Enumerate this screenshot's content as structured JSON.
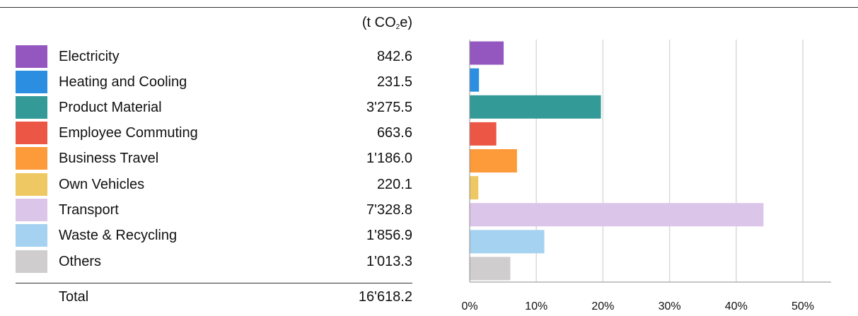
{
  "table": {
    "unit_prefix": "(t CO",
    "unit_sub": "2",
    "unit_suffix": "e)",
    "rows": [
      {
        "label": "Electricity",
        "value": "842.6",
        "color": "#9457c0"
      },
      {
        "label": "Heating and Cooling",
        "value": "231.5",
        "color": "#2b8ee0"
      },
      {
        "label": "Product Material",
        "value": "3'275.5",
        "color": "#339a98"
      },
      {
        "label": "Employee Commuting",
        "value": "663.6",
        "color": "#ec5644"
      },
      {
        "label": "Business Travel",
        "value": "1'186.0",
        "color": "#fd9a39"
      },
      {
        "label": "Own Vehicles",
        "value": "220.1",
        "color": "#eec862"
      },
      {
        "label": "Transport",
        "value": "7'328.8",
        "color": "#dbc5e9"
      },
      {
        "label": "Waste & Recycling",
        "value": "1'856.9",
        "color": "#a5d2f1"
      },
      {
        "label": "Others",
        "value": "1'013.3",
        "color": "#cfcdcd"
      }
    ],
    "total_label": "Total",
    "total_value": "16'618.2"
  },
  "chart_data": {
    "type": "bar",
    "orientation": "horizontal",
    "categories": [
      "Electricity",
      "Heating and Cooling",
      "Product Material",
      "Employee Commuting",
      "Business Travel",
      "Own Vehicles",
      "Transport",
      "Waste & Recycling",
      "Others"
    ],
    "values": [
      5.1,
      1.4,
      19.7,
      4.0,
      7.1,
      1.3,
      44.1,
      11.2,
      6.1
    ],
    "colors": [
      "#9457c0",
      "#2b8ee0",
      "#339a98",
      "#ec5644",
      "#fd9a39",
      "#eec862",
      "#dbc5e9",
      "#a5d2f1",
      "#cfcdcd"
    ],
    "xlim": [
      0,
      50
    ],
    "xticks": [
      0,
      10,
      20,
      30,
      40,
      50
    ],
    "tick_labels": [
      "0%",
      "10%",
      "20%",
      "30%",
      "40%",
      "50%"
    ],
    "grid": true,
    "title": "",
    "xlabel": "",
    "ylabel": ""
  }
}
